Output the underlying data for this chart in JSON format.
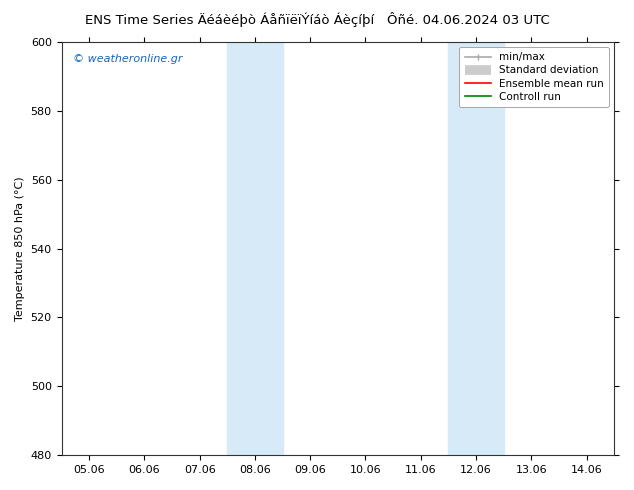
{
  "title_left": "ENS Time Series Äéáèéþò ÁåñïëïÝíáò Áèçíþí",
  "title_right": "Ôñé. 04.06.2024 03 UTC",
  "ylabel": "Temperature 850 hPa (°C)",
  "xlabel": "",
  "watermark": "© weatheronline.gr",
  "ylim": [
    480,
    600
  ],
  "yticks": [
    480,
    500,
    520,
    540,
    560,
    580,
    600
  ],
  "xtick_labels": [
    "05.06",
    "06.06",
    "07.06",
    "08.06",
    "09.06",
    "10.06",
    "11.06",
    "12.06",
    "13.06",
    "14.06"
  ],
  "xlim": [
    0,
    9
  ],
  "shaded_bands": [
    {
      "x_start": 3.0,
      "x_end": 4.0
    },
    {
      "x_start": 7.0,
      "x_end": 8.0
    }
  ],
  "shade_color": "#d6eaf8",
  "background_color": "#ffffff",
  "plot_bg_color": "#ffffff",
  "legend_items": [
    {
      "label": "min/max",
      "color": "#aaaaaa",
      "lw": 1.2
    },
    {
      "label": "Standard deviation",
      "color": "#cccccc",
      "lw": 7
    },
    {
      "label": "Ensemble mean run",
      "color": "#ff0000",
      "lw": 1.2
    },
    {
      "label": "Controll run",
      "color": "#008000",
      "lw": 1.2
    }
  ],
  "title_fontsize": 9.5,
  "tick_label_fontsize": 8,
  "ylabel_fontsize": 8,
  "watermark_fontsize": 8,
  "watermark_color": "#1565c0",
  "legend_fontsize": 7.5
}
